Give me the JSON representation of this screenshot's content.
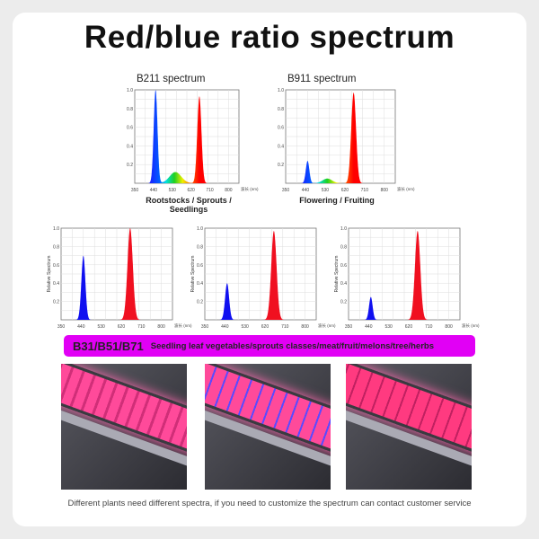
{
  "title": "Red/blue ratio spectrum",
  "banner": {
    "models": "B31/B51/B71",
    "text": "Seedling leaf vegetables/sprouts classes/meat/fruit/melons/tree/herbs"
  },
  "footer": "Different plants need different spectra, if you need to customize the spectrum can contact customer service",
  "chart_data": [
    {
      "type": "area",
      "title": "B211 spectrum",
      "caption": "Rootstocks / Sprouts / Seedlings",
      "xlabel": "波长 (nm)",
      "ylabel": "",
      "xticks": [
        "350",
        "440",
        "530",
        "620",
        "710",
        "800"
      ],
      "yticks": [
        "0.2",
        "0.4",
        "0.6",
        "0.8",
        "1.0"
      ],
      "xlim": [
        350,
        850
      ],
      "ylim": [
        0,
        1
      ],
      "grid": true,
      "fill": "rainbow",
      "peaks": [
        {
          "nm": 450,
          "value": 1.0,
          "width": 9
        },
        {
          "nm": 545,
          "value": 0.12,
          "width": 28
        },
        {
          "nm": 660,
          "value": 0.93,
          "width": 10
        }
      ]
    },
    {
      "type": "area",
      "title": "B911 spectrum",
      "caption": "Flowering / Fruiting",
      "xlabel": "波长 (nm)",
      "ylabel": "",
      "xticks": [
        "350",
        "440",
        "530",
        "620",
        "710",
        "800"
      ],
      "yticks": [
        "0.2",
        "0.4",
        "0.6",
        "0.8",
        "1.0"
      ],
      "xlim": [
        350,
        850
      ],
      "ylim": [
        0,
        1
      ],
      "grid": true,
      "fill": "rainbow",
      "peaks": [
        {
          "nm": 450,
          "value": 0.24,
          "width": 8
        },
        {
          "nm": 540,
          "value": 0.05,
          "width": 22
        },
        {
          "nm": 660,
          "value": 0.97,
          "width": 11
        }
      ]
    },
    {
      "type": "area",
      "title": "",
      "caption": "",
      "xlabel": "波长 (nm)",
      "ylabel": "Relative Spectrum",
      "xticks": [
        "350",
        "440",
        "530",
        "620",
        "710",
        "800"
      ],
      "yticks": [
        "0.2",
        "0.4",
        "0.6",
        "0.8",
        "1.0"
      ],
      "xlim": [
        350,
        850
      ],
      "ylim": [
        0,
        1
      ],
      "grid": true,
      "fill": "bluered",
      "peaks": [
        {
          "nm": 450,
          "value": 0.7,
          "width": 9
        },
        {
          "nm": 660,
          "value": 1.0,
          "width": 12
        }
      ]
    },
    {
      "type": "area",
      "title": "",
      "caption": "",
      "xlabel": "波长 (nm)",
      "ylabel": "Relative Spectrum",
      "xticks": [
        "350",
        "440",
        "530",
        "620",
        "710",
        "800"
      ],
      "yticks": [
        "0.2",
        "0.4",
        "0.6",
        "0.8",
        "1.0"
      ],
      "xlim": [
        350,
        850
      ],
      "ylim": [
        0,
        1
      ],
      "grid": true,
      "fill": "bluered",
      "peaks": [
        {
          "nm": 450,
          "value": 0.4,
          "width": 9
        },
        {
          "nm": 660,
          "value": 0.97,
          "width": 12
        }
      ]
    },
    {
      "type": "area",
      "title": "",
      "caption": "",
      "xlabel": "波长 (nm)",
      "ylabel": "Relative Spectrum",
      "xticks": [
        "350",
        "440",
        "530",
        "620",
        "710",
        "800"
      ],
      "yticks": [
        "0.2",
        "0.4",
        "0.6",
        "0.8",
        "1.0"
      ],
      "xlim": [
        350,
        850
      ],
      "ylim": [
        0,
        1
      ],
      "grid": true,
      "fill": "bluered",
      "peaks": [
        {
          "nm": 450,
          "value": 0.25,
          "width": 8
        },
        {
          "nm": 660,
          "value": 0.97,
          "width": 12
        }
      ]
    }
  ]
}
